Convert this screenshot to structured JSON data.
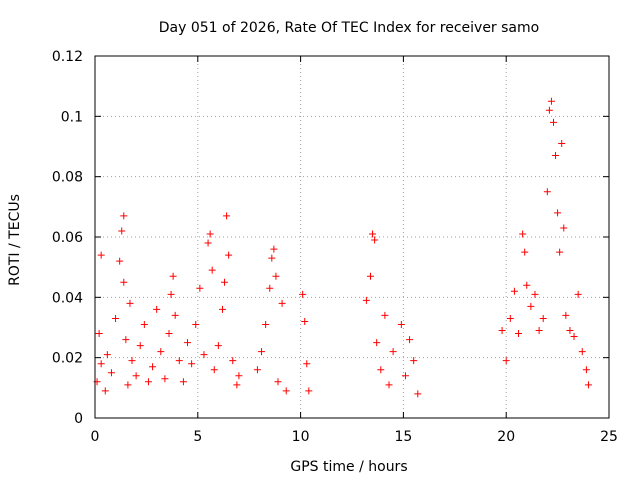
{
  "chart_data": {
    "type": "scatter",
    "title": "Day 051 of 2026, Rate Of TEC Index for receiver samo",
    "xlabel": "GPS time / hours",
    "ylabel": "ROTI / TECUs",
    "xlim": [
      0,
      25
    ],
    "ylim": [
      0,
      0.12
    ],
    "xticks": [
      "0",
      "5",
      "10",
      "15",
      "20",
      "25"
    ],
    "yticks": [
      "0",
      "0.02",
      "0.04",
      "0.06",
      "0.08",
      "0.1",
      "0.12"
    ],
    "grid": true,
    "marker": "plus",
    "color": "#ff0000",
    "series": [
      {
        "x": [
          0.1,
          0.2,
          0.3,
          0.3,
          0.5,
          0.6,
          0.8,
          1.0,
          1.2,
          1.3,
          1.4,
          1.4,
          1.5,
          1.6,
          1.7,
          1.8,
          2.0,
          2.2,
          2.4,
          2.6,
          2.8,
          3.0,
          3.2,
          3.4,
          3.6,
          3.7,
          3.8,
          3.9,
          4.1,
          4.3,
          4.5,
          4.7,
          4.9,
          5.1,
          5.3,
          5.5,
          5.6,
          5.7,
          5.8,
          6.0,
          6.2,
          6.3,
          6.4,
          6.5,
          6.7,
          6.9,
          7.0,
          7.9,
          8.1,
          8.3,
          8.5,
          8.6,
          8.7,
          8.8,
          8.9,
          9.1,
          9.3,
          10.1,
          10.2,
          10.3,
          10.4,
          13.2,
          13.4,
          13.5,
          13.6,
          13.7,
          13.9,
          14.1,
          14.3,
          14.5,
          14.9,
          15.1,
          15.3,
          15.5,
          15.7,
          19.8,
          20.0,
          20.2,
          20.4,
          20.6,
          20.8,
          20.9,
          21.0,
          21.2,
          21.4,
          21.6,
          21.8,
          22.0,
          22.1,
          22.2,
          22.3,
          22.4,
          22.5,
          22.6,
          22.7,
          22.8,
          22.9,
          23.1,
          23.3,
          23.5,
          23.7,
          23.9,
          24.0
        ],
        "y": [
          0.012,
          0.028,
          0.054,
          0.018,
          0.009,
          0.021,
          0.015,
          0.033,
          0.052,
          0.062,
          0.067,
          0.045,
          0.026,
          0.011,
          0.038,
          0.019,
          0.014,
          0.024,
          0.031,
          0.012,
          0.017,
          0.036,
          0.022,
          0.013,
          0.028,
          0.041,
          0.047,
          0.034,
          0.019,
          0.012,
          0.025,
          0.018,
          0.031,
          0.043,
          0.021,
          0.058,
          0.061,
          0.049,
          0.016,
          0.024,
          0.036,
          0.045,
          0.067,
          0.054,
          0.019,
          0.011,
          0.014,
          0.016,
          0.022,
          0.031,
          0.043,
          0.053,
          0.056,
          0.047,
          0.012,
          0.038,
          0.009,
          0.041,
          0.032,
          0.018,
          0.009,
          0.039,
          0.047,
          0.061,
          0.059,
          0.025,
          0.016,
          0.034,
          0.011,
          0.022,
          0.031,
          0.014,
          0.026,
          0.019,
          0.008,
          0.029,
          0.019,
          0.033,
          0.042,
          0.028,
          0.061,
          0.055,
          0.044,
          0.037,
          0.041,
          0.029,
          0.033,
          0.075,
          0.102,
          0.105,
          0.098,
          0.087,
          0.068,
          0.055,
          0.091,
          0.063,
          0.034,
          0.029,
          0.027,
          0.041,
          0.022,
          0.016,
          0.011
        ]
      }
    ]
  }
}
